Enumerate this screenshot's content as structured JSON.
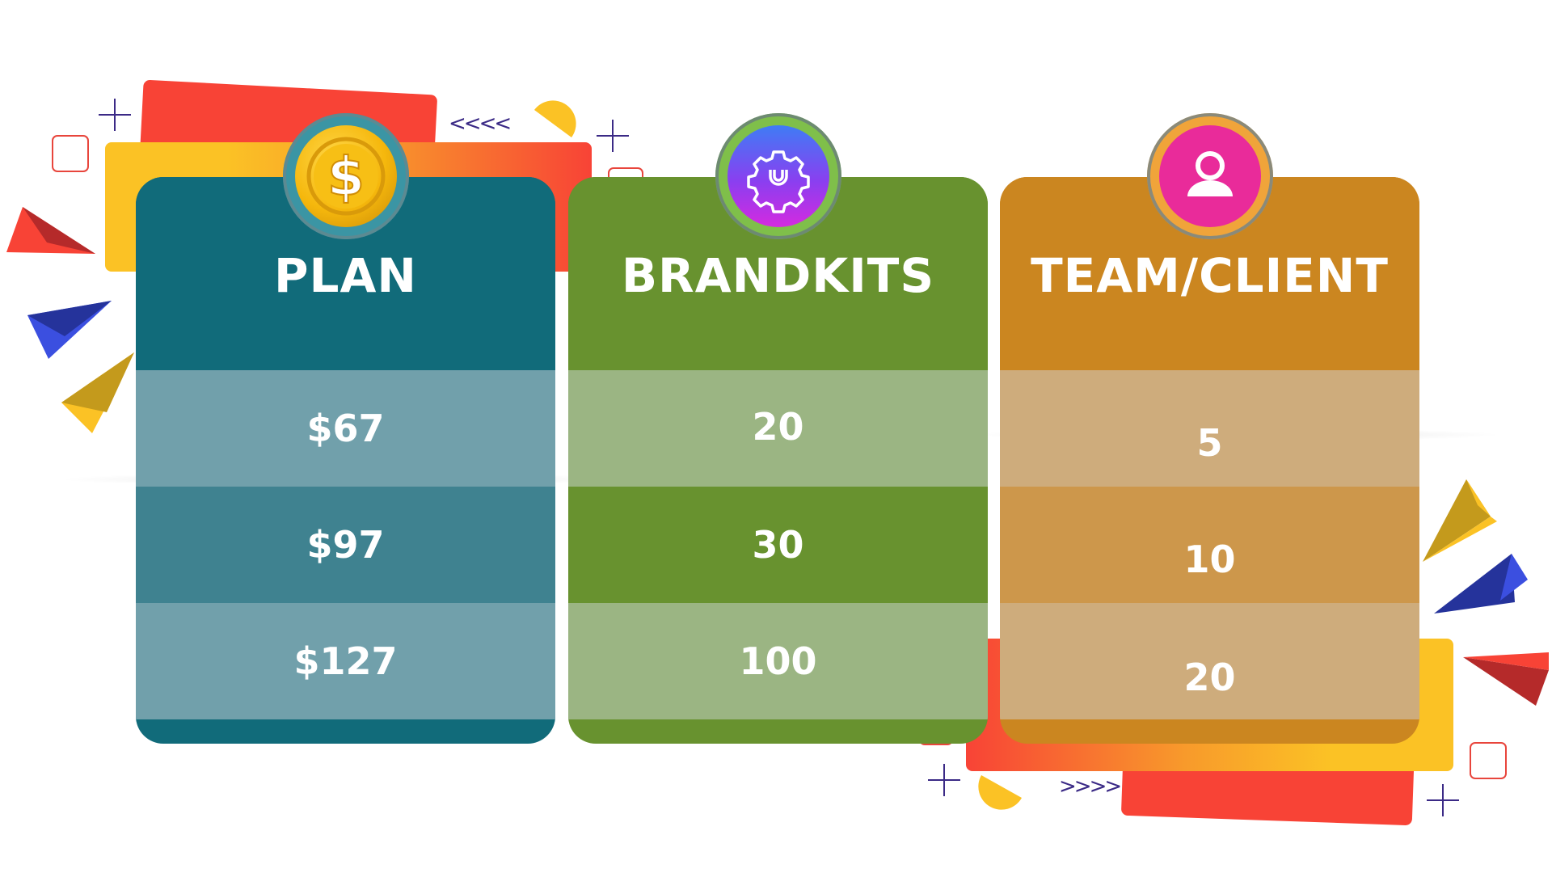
{
  "table": {
    "columns": [
      {
        "title": "PLAN",
        "icon": "dollar-coin-icon",
        "values": [
          "$67",
          "$97",
          "$127"
        ],
        "colors": {
          "header": "#116b7a",
          "row_light": "#71a0ab",
          "row_dark": "#3f8290"
        }
      },
      {
        "title": "BRANDKITS",
        "icon": "gear-settings-icon",
        "values": [
          "20",
          "30",
          "100"
        ],
        "colors": {
          "header": "#68922f",
          "row_light": "#9bb583",
          "row_dark": "#68922f"
        }
      },
      {
        "title": "TEAM/CLIENT",
        "icon": "user-profile-icon",
        "values": [
          "5",
          "10",
          "20"
        ],
        "colors": {
          "header": "#cb8620",
          "row_light": "#ceac7c",
          "row_dark": "#cd974b"
        }
      }
    ]
  },
  "decorations": {
    "accent_colors": [
      "#f84336",
      "#fbc225",
      "#3b4fe0",
      "#3b2a86"
    ],
    "chevrons_left": "<<<<",
    "chevrons_right": ">>>>"
  }
}
